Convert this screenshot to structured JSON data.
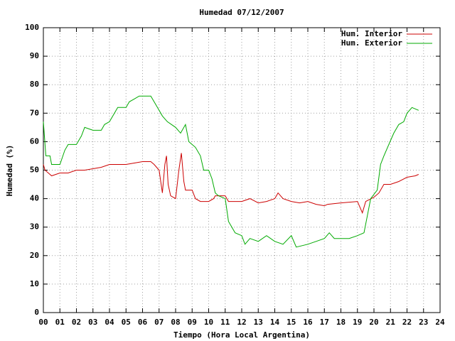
{
  "chart_data": {
    "type": "line",
    "title": "Humedad 07/12/2007",
    "xlabel": "Tiempo (Hora Local Argentina)",
    "ylabel": "Humedad (%)",
    "xlim": [
      0,
      24
    ],
    "ylim": [
      0,
      100
    ],
    "xticks": [
      {
        "value": 0,
        "label": "00"
      },
      {
        "value": 1,
        "label": "01"
      },
      {
        "value": 2,
        "label": "02"
      },
      {
        "value": 3,
        "label": "03"
      },
      {
        "value": 4,
        "label": "04"
      },
      {
        "value": 5,
        "label": "05"
      },
      {
        "value": 6,
        "label": "06"
      },
      {
        "value": 7,
        "label": "07"
      },
      {
        "value": 8,
        "label": "08"
      },
      {
        "value": 9,
        "label": "09"
      },
      10,
      11,
      12,
      13,
      14,
      15,
      16,
      17,
      18,
      19,
      20,
      21,
      22,
      23,
      24
    ],
    "yticks": [
      0,
      10,
      20,
      30,
      40,
      50,
      60,
      70,
      80,
      90,
      100
    ],
    "grid": true,
    "legend": "top-right",
    "series": [
      {
        "name": "Hum. Interior",
        "color": "#cc0000",
        "x": [
          0,
          0.1,
          0.3,
          0.5,
          1.0,
          1.5,
          2.0,
          2.5,
          3.0,
          3.5,
          4.0,
          4.5,
          5.0,
          5.5,
          6.0,
          6.5,
          6.7,
          7.0,
          7.2,
          7.35,
          7.45,
          7.55,
          7.7,
          8.0,
          8.2,
          8.35,
          8.5,
          8.6,
          9.0,
          9.2,
          9.5,
          10.0,
          10.3,
          10.4,
          11.0,
          11.2,
          12.0,
          12.5,
          13.0,
          13.5,
          14.0,
          14.2,
          14.5,
          15.0,
          15.5,
          16.0,
          16.5,
          17.0,
          17.2,
          18.0,
          19.0,
          19.3,
          19.5,
          20.0,
          20.3,
          20.6,
          21.0,
          21.5,
          22.0,
          22.5,
          22.7
        ],
        "values": [
          52,
          50,
          49,
          48,
          49,
          49,
          50,
          50,
          50.5,
          51,
          52,
          52,
          52,
          52.5,
          53,
          53,
          52,
          50,
          42,
          52,
          55,
          45,
          41,
          40,
          50,
          56,
          46,
          43,
          43,
          40,
          39,
          39,
          40,
          41,
          41,
          39,
          39,
          40,
          38.5,
          39,
          40,
          42,
          40,
          39,
          38.5,
          39,
          38,
          37.5,
          38,
          38.5,
          39,
          35,
          39,
          40.5,
          42,
          45,
          45,
          46,
          47.5,
          48,
          48.5
        ]
      },
      {
        "name": "Hum. Exterior",
        "color": "#00aa00",
        "x": [
          0,
          0.15,
          0.4,
          0.5,
          1.0,
          1.3,
          1.5,
          2.0,
          2.3,
          2.5,
          3.0,
          3.5,
          3.7,
          4.0,
          4.3,
          4.5,
          5.0,
          5.2,
          5.5,
          5.8,
          6.5,
          6.7,
          7.0,
          7.2,
          7.5,
          8.0,
          8.3,
          8.6,
          8.8,
          9.2,
          9.5,
          9.7,
          10.0,
          10.2,
          10.4,
          10.6,
          11.0,
          11.2,
          11.4,
          11.6,
          12.0,
          12.2,
          12.5,
          13.0,
          13.5,
          14.0,
          14.5,
          15.0,
          15.3,
          16.0,
          16.5,
          17.0,
          17.3,
          17.6,
          18.0,
          18.5,
          19.0,
          19.4,
          19.6,
          19.8,
          20.2,
          20.4,
          20.6,
          20.9,
          21.2,
          21.5,
          21.8,
          22.0,
          22.3,
          22.7
        ],
        "values": [
          67,
          55,
          55,
          52,
          52,
          57,
          59,
          59,
          62,
          65,
          64,
          64,
          66,
          67,
          70,
          72,
          72,
          74,
          75,
          76,
          76,
          74,
          71,
          69,
          67,
          65,
          63,
          66,
          60,
          58,
          55,
          50,
          50,
          47,
          42,
          41,
          40,
          32,
          30,
          28,
          27,
          24,
          26,
          25,
          27,
          25,
          24,
          27,
          23,
          24,
          25,
          26,
          28,
          26,
          26,
          26,
          27,
          28,
          34,
          40,
          43,
          52,
          55,
          59,
          63,
          66,
          67,
          70,
          72,
          71
        ]
      }
    ]
  }
}
